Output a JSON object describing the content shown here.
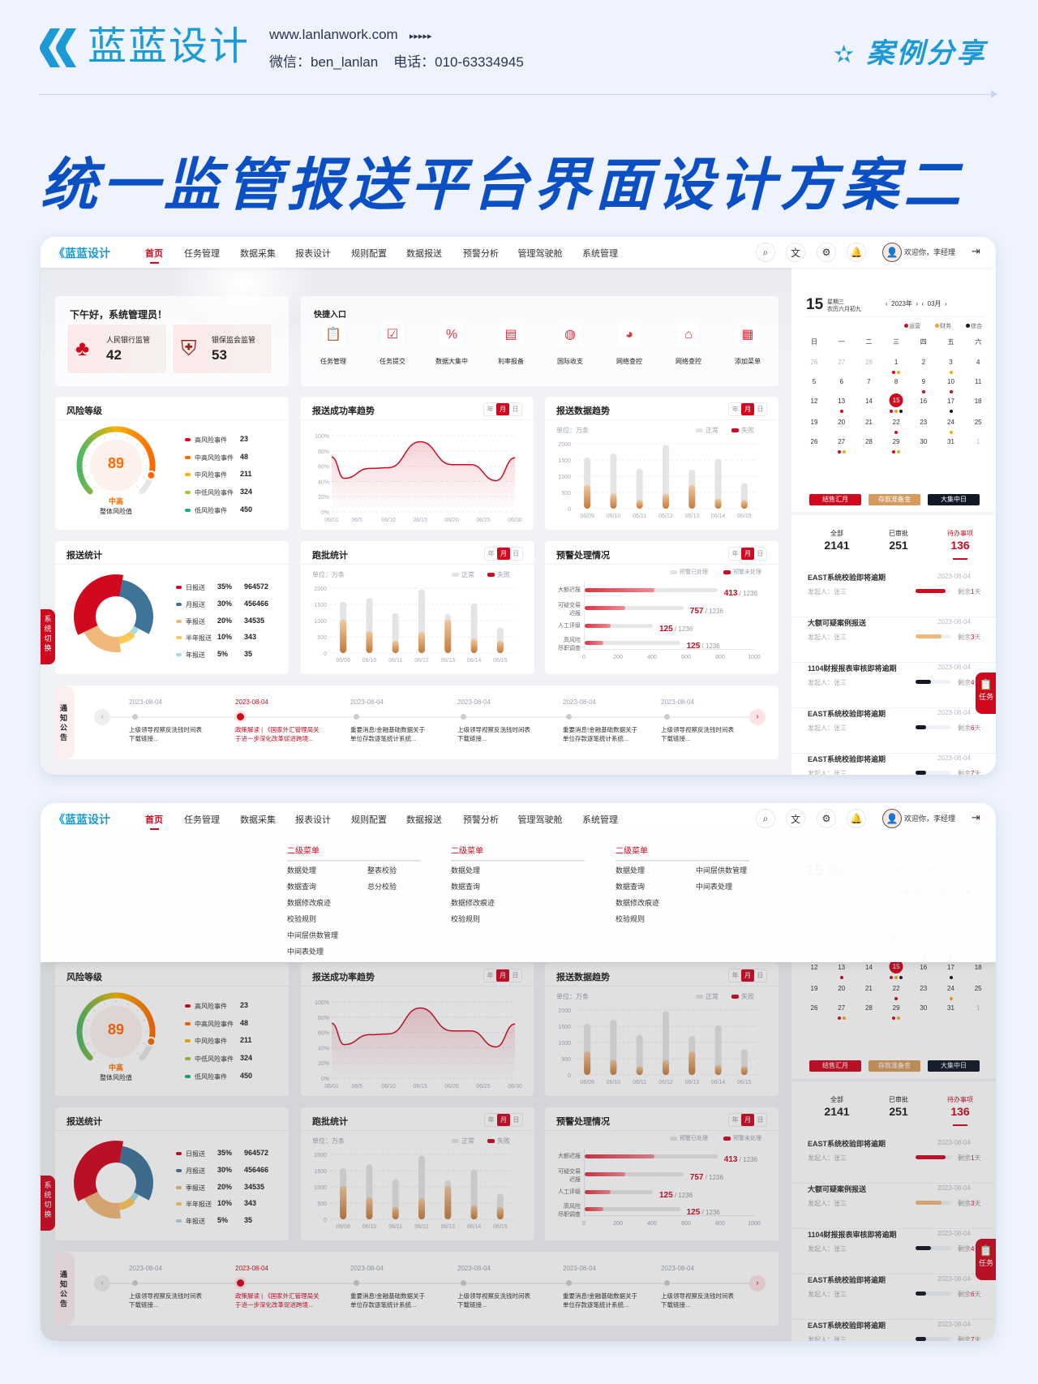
{
  "header": {
    "brand": "蓝蓝设计",
    "website": "www.lanlanwork.com",
    "arrows": "▸▸▸▸▸",
    "wechat": "微信：ben_lanlan",
    "phone": "电话：010-63334945",
    "case_label": "案例分享"
  },
  "title": "统一监管报送平台界面设计方案二",
  "colors": {
    "accent": "#d0091f",
    "brand_blue": "#1c9ad6",
    "title_blue": "#0a4fc4",
    "bronze": "#c9874a"
  },
  "nav": {
    "logo": "蓝蓝设计",
    "items": [
      "首页",
      "任务管理",
      "数据采集",
      "报表设计",
      "规则配置",
      "数据报送",
      "预警分析",
      "管理驾驶舱",
      "系统管理"
    ],
    "active": "首页",
    "icons": [
      "search-icon",
      "translate-icon",
      "gear-icon",
      "bell-icon"
    ],
    "welcome": "欢迎你，李经理"
  },
  "greeting": {
    "title": "下午好，系统管理员！",
    "cards": [
      {
        "label": "人民银行监管",
        "value": "42"
      },
      {
        "label": "银保监会监管",
        "value": "53"
      }
    ]
  },
  "quick": {
    "title": "快捷入口",
    "items": [
      "任务管理",
      "任务提交",
      "数据大集中",
      "利率报备",
      "国际收支",
      "网络查控",
      "网络查控",
      "添加菜单"
    ]
  },
  "toggle": [
    "年",
    "月",
    "日"
  ],
  "toggle_selected": "月",
  "risk": {
    "title": "风险等级",
    "score": "89",
    "score_fraction": 0.89,
    "level": "中高",
    "caption": "整体风险值",
    "legend": [
      {
        "label": "高风险事件",
        "value": "23",
        "color": "#d0091f"
      },
      {
        "label": "中高风险事件",
        "value": "48",
        "color": "#ff6a00"
      },
      {
        "label": "中风险事件",
        "value": "211",
        "color": "#f5b400"
      },
      {
        "label": "中低风险事件",
        "value": "324",
        "color": "#a8c23a"
      },
      {
        "label": "低风险事件",
        "value": "450",
        "color": "#17b07c"
      }
    ]
  },
  "chart_data": [
    {
      "id": "success-rate",
      "type": "area",
      "title": "报送成功率趋势",
      "x_ticks": [
        "06/01",
        "06/5",
        "06/10",
        "06/15",
        "06/20",
        "06/25",
        "06/30"
      ],
      "x_tick_days": [
        1,
        5,
        10,
        15,
        20,
        25,
        30
      ],
      "y_ticks": [
        "0%",
        "20%",
        "40%",
        "60%",
        "80%",
        "100%"
      ],
      "ylim": [
        0,
        100
      ],
      "points": {
        "day": [
          1,
          3,
          7,
          10,
          15,
          20,
          23,
          27,
          30
        ],
        "value": [
          72,
          44,
          57,
          58,
          92,
          62,
          62,
          41,
          71
        ]
      },
      "color": "#d0091f"
    },
    {
      "id": "submit-trend",
      "type": "bar",
      "title": "报送数据趋势",
      "unit": "单位：万条",
      "categories": [
        "06/09",
        "06/10",
        "06/11",
        "06/12",
        "06/13",
        "06/14",
        "06/15"
      ],
      "y_ticks": [
        "0",
        "500",
        "1000",
        "1500",
        "2000"
      ],
      "ylim": [
        0,
        2000
      ],
      "series": [
        {
          "name": "正常",
          "values": [
            1580,
            1700,
            1230,
            1960,
            1200,
            1530,
            790
          ],
          "color": "#e4e4e4"
        },
        {
          "name": "失败",
          "values": [
            730,
            470,
            270,
            460,
            730,
            310,
            270
          ],
          "color": "#c9874a"
        }
      ],
      "legend_colors": [
        "#e4e4e4",
        "#d0091f"
      ]
    },
    {
      "id": "submit-stats",
      "type": "pie",
      "title": "报送统计",
      "slices": [
        {
          "label": "日报送",
          "pct": "35%",
          "value": "964572",
          "share": 35,
          "color": "#d0091f"
        },
        {
          "label": "月报送",
          "pct": "30%",
          "value": "456466",
          "share": 30,
          "color": "#3f7499"
        },
        {
          "label": "季报送",
          "pct": "20%",
          "value": "34535",
          "share": 20,
          "color": "#f0b87a"
        },
        {
          "label": "半年报送",
          "pct": "10%",
          "value": "343",
          "share": 10,
          "color": "#ffc857"
        },
        {
          "label": "年报送",
          "pct": "5%",
          "value": "35",
          "share": 5,
          "color": "#a8dade"
        }
      ]
    },
    {
      "id": "batch-stats",
      "type": "bar",
      "title": "跑批统计",
      "unit": "单位：万条",
      "categories": [
        "06/09",
        "06/10",
        "06/11",
        "06/12",
        "06/13",
        "06/14",
        "06/15"
      ],
      "y_ticks": [
        "0",
        "500",
        "1000",
        "1500",
        "2000"
      ],
      "ylim": [
        0,
        2000
      ],
      "series": [
        {
          "name": "正常",
          "values": [
            1580,
            1700,
            1230,
            1960,
            1200,
            1530,
            790
          ],
          "color": "#e4e4e4"
        },
        {
          "name": "失败",
          "values": [
            1030,
            680,
            380,
            650,
            1030,
            440,
            380
          ],
          "color": "#c9874a"
        }
      ],
      "legend_colors": [
        "#e4e4e4",
        "#d0091f"
      ]
    },
    {
      "id": "warning",
      "type": "bar",
      "orientation": "horizontal",
      "title": "预警处理情况",
      "legend": [
        "预警已处理",
        "预警未处理"
      ],
      "categories": [
        "大额迟报",
        "可疑交易迟报",
        "人工评级",
        "高风险尽职调查"
      ],
      "category_lines": [
        [
          "大额迟报"
        ],
        [
          "可疑交易",
          "迟报"
        ],
        [
          "人工评级"
        ],
        [
          "高风险",
          "尽职调查"
        ]
      ],
      "x_ticks": [
        "0",
        "200",
        "400",
        "600",
        "800",
        "1000"
      ],
      "xlim": [
        0,
        1000
      ],
      "processed": [
        780,
        580,
        400,
        560
      ],
      "unprocessed": [
        410,
        240,
        150,
        110
      ],
      "labels": [
        "413",
        "757",
        "125",
        "125"
      ],
      "total": "1236"
    }
  ],
  "notice": {
    "title": "通知公告",
    "items": [
      {
        "date": "2023-08-04",
        "text": [
          "上级领导视察反洗钱时间表",
          "下载链接..."
        ],
        "active": false
      },
      {
        "date": "2023-08-04",
        "text": [
          "政策解读 | 《国家外汇管理局关",
          "于进一步深化改革促进跨境..."
        ],
        "active": true
      },
      {
        "date": "2023-08-04",
        "text": [
          "重要消息!金融基础数据关于",
          "单位存款逐笔统计系统..."
        ],
        "active": false
      },
      {
        "date": "2023-08-04",
        "text": [
          "上级领导视察反洗钱时间表",
          "下载链接..."
        ],
        "active": false
      },
      {
        "date": "2023-08-04",
        "text": [
          "重要消息!金融基础数据关于",
          "单位存款逐笔统计系统..."
        ],
        "active": false
      },
      {
        "date": "2023-08-04",
        "text": [
          "上级领导视察反洗钱时间表",
          "下载链接..."
        ],
        "active": false
      }
    ]
  },
  "calendar": {
    "day": "15",
    "weekday": "星期三",
    "lunar": "农历六月初九",
    "year": "2023年",
    "month": "03月",
    "legend": [
      {
        "label": "运营",
        "color": "#d0091f"
      },
      {
        "label": "财务",
        "color": "#f5a623"
      },
      {
        "label": "综合",
        "color": "#111827"
      }
    ],
    "weekdays": [
      "日",
      "一",
      "二",
      "三",
      "四",
      "五",
      "六"
    ],
    "weeks": [
      [
        {
          "d": "26",
          "o": true
        },
        {
          "d": "27",
          "o": true
        },
        {
          "d": "28",
          "o": true
        },
        {
          "d": "1",
          "e": [
            "#d0091f",
            "#f5a623"
          ]
        },
        {
          "d": "2"
        },
        {
          "d": "3",
          "e": [
            "#f5a623"
          ]
        },
        {
          "d": "4"
        }
      ],
      [
        {
          "d": "5"
        },
        {
          "d": "6"
        },
        {
          "d": "7"
        },
        {
          "d": "8"
        },
        {
          "d": "9",
          "e": [
            "#d0091f"
          ]
        },
        {
          "d": "10",
          "e": [
            "#d0091f"
          ]
        },
        {
          "d": "11"
        }
      ],
      [
        {
          "d": "12"
        },
        {
          "d": "13",
          "e": [
            "#d0091f"
          ]
        },
        {
          "d": "14"
        },
        {
          "d": "15",
          "sel": true,
          "e": [
            "#d0091f",
            "#f5a623",
            "#111827"
          ]
        },
        {
          "d": "16"
        },
        {
          "d": "17",
          "e": [
            "#111827"
          ]
        },
        {
          "d": "18"
        }
      ],
      [
        {
          "d": "19"
        },
        {
          "d": "20"
        },
        {
          "d": "21"
        },
        {
          "d": "22",
          "e": [
            "#d0091f"
          ]
        },
        {
          "d": "23"
        },
        {
          "d": "24",
          "e": [
            "#f5a623"
          ]
        },
        {
          "d": "25"
        }
      ],
      [
        {
          "d": "26"
        },
        {
          "d": "27",
          "e": [
            "#d0091f",
            "#f5a623"
          ]
        },
        {
          "d": "28"
        },
        {
          "d": "29",
          "e": [
            "#d0091f",
            "#f5a623"
          ]
        },
        {
          "d": "30"
        },
        {
          "d": "31"
        },
        {
          "d": "1",
          "o": true
        }
      ]
    ],
    "buttons": [
      {
        "label": "结售汇月",
        "color": "#d0091f"
      },
      {
        "label": "存款准备金",
        "color": "#d59a5c"
      },
      {
        "label": "大集中日",
        "color": "#111827"
      }
    ]
  },
  "stats": [
    {
      "label": "全部",
      "value": "2141"
    },
    {
      "label": "已审批",
      "value": "251"
    },
    {
      "label": "待办事项",
      "value": "136",
      "active": true
    }
  ],
  "tasks": [
    {
      "title": "EAST系统校验即将逾期",
      "date": "2023-08-04",
      "initiator": "发起人：张三",
      "progress": 0.85,
      "color": "#d0091f",
      "remain_pre": "剩余",
      "remain_days": "1",
      "remain_post": "天"
    },
    {
      "title": "大额可疑案例报送",
      "date": "2023-08-04",
      "initiator": "发起人：张三",
      "progress": 0.75,
      "color": "#f0b87a",
      "remain_pre": "剩余",
      "remain_days": "3",
      "remain_post": "天"
    },
    {
      "title": "1104财报报表审核即将逾期",
      "date": "2023-08-04",
      "initiator": "发起人：张三",
      "progress": 0.45,
      "color": "#111827",
      "remain_pre": "剩余",
      "remain_days": "4",
      "remain_post": "天"
    },
    {
      "title": "EAST系统校验即将逾期",
      "date": "2023-08-04",
      "initiator": "发起人：张三",
      "progress": 0.3,
      "color": "#111827",
      "remain_pre": "剩余",
      "remain_days": "6",
      "remain_post": "天"
    },
    {
      "title": "EAST系统校验即将逾期",
      "date": "2023-08-04",
      "initiator": "发起人：张三",
      "progress": 0.3,
      "color": "#111827",
      "remain_pre": "剩余",
      "remain_days": "7",
      "remain_post": "天"
    }
  ],
  "side_tabs": {
    "system_switch": "系统切换",
    "task": "任务"
  },
  "dropdown": {
    "columns": [
      {
        "title": "二级菜单",
        "left": [
          "数据处理",
          "数据查询",
          "数据修改痕迹",
          "校验规则",
          "中间层供数管理",
          "中间表处理"
        ],
        "right": [
          "整表校验",
          "总分校验"
        ]
      },
      {
        "title": "二级菜单",
        "left": [
          "数据处理",
          "数据查询",
          "数据修改痕迹",
          "校验规则"
        ],
        "right": []
      },
      {
        "title": "二级菜单",
        "left": [
          "数据处理",
          "数据查询",
          "数据修改痕迹",
          "校验规则"
        ],
        "right": [
          "中间层供数管理",
          "中间表处理"
        ]
      }
    ]
  }
}
